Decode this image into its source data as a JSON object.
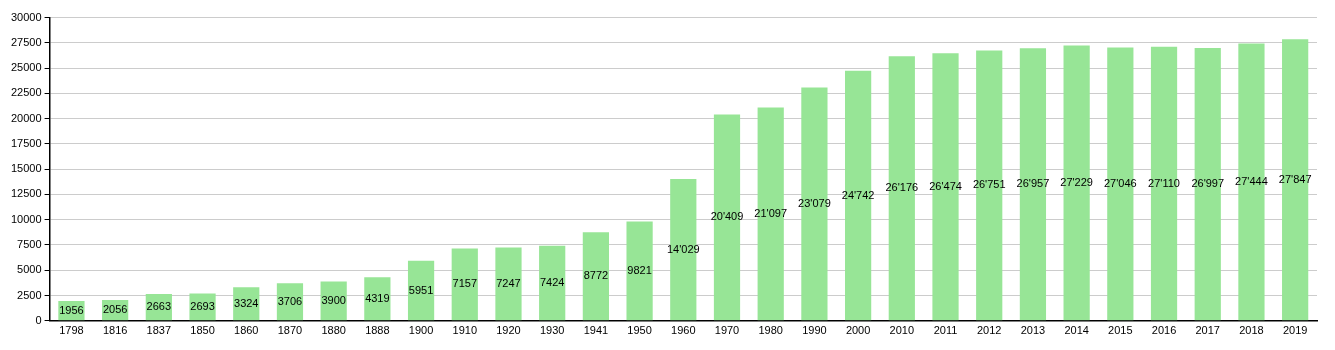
{
  "chart_data": {
    "type": "bar",
    "categories": [
      "1798",
      "1816",
      "1837",
      "1850",
      "1860",
      "1870",
      "1880",
      "1888",
      "1900",
      "1910",
      "1920",
      "1930",
      "1941",
      "1950",
      "1960",
      "1970",
      "1980",
      "1990",
      "2000",
      "2010",
      "2011",
      "2012",
      "2013",
      "2014",
      "2015",
      "2016",
      "2017",
      "2018",
      "2019"
    ],
    "values": [
      1956,
      2056,
      2663,
      2693,
      3324,
      3706,
      3900,
      4319,
      5951,
      7157,
      7247,
      7424,
      8772,
      9821,
      14029,
      20409,
      21097,
      23079,
      24742,
      26176,
      26474,
      26751,
      26957,
      27229,
      27046,
      27110,
      26997,
      27444,
      27847
    ],
    "value_labels": [
      "1956",
      "2056",
      "2663",
      "2693",
      "3324",
      "3706",
      "3900",
      "4319",
      "5951",
      "7157",
      "7247",
      "7424",
      "8772",
      "9821",
      "14'029",
      "20'409",
      "21'097",
      "23'079",
      "24'742",
      "26'176",
      "26'474",
      "26'751",
      "26'957",
      "27'229",
      "27'046",
      "27'110",
      "26'997",
      "27'444",
      "27'847"
    ],
    "color": "#97e596",
    "ylim": [
      0,
      30000
    ],
    "yticks": [
      0,
      2500,
      5000,
      7500,
      10000,
      12500,
      15000,
      17500,
      20000,
      22500,
      25000,
      27500,
      30000
    ],
    "grid": "y"
  }
}
